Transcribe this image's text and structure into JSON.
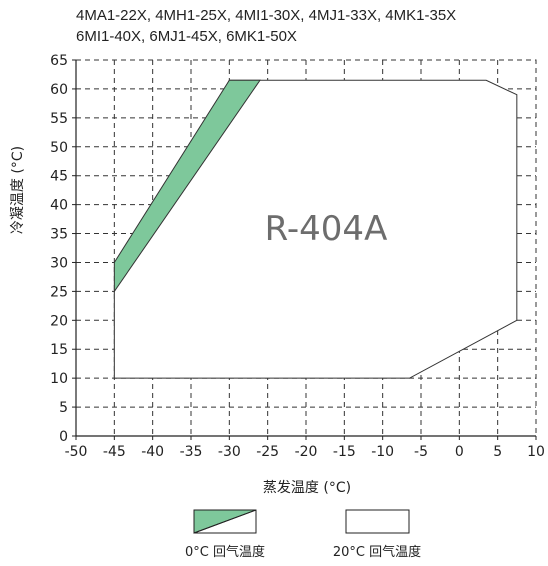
{
  "chart_data": {
    "type": "area",
    "title_lines": [
      "4MA1-22X, 4MH1-25X, 4MI1-30X, 4MJ1-33X, 4MK1-35X",
      "6MI1-40X, 6MJ1-45X, 6MK1-50X"
    ],
    "xlabel": "蒸发温度 (°C)",
    "ylabel": "冷凝温度 (°C)",
    "xlim": [
      -50,
      10
    ],
    "ylim": [
      0,
      65
    ],
    "x_ticks": [
      -50,
      -45,
      -40,
      -35,
      -30,
      -25,
      -20,
      -15,
      -10,
      -5,
      0,
      5,
      10
    ],
    "y_ticks": [
      0,
      5,
      10,
      15,
      20,
      25,
      30,
      35,
      40,
      45,
      50,
      55,
      60,
      65
    ],
    "grid": true,
    "annotation": "R-404A",
    "series": [
      {
        "name": "20°C 回气温度",
        "fill": "#ffffff",
        "points": [
          [
            -45,
            10
          ],
          [
            -45,
            25
          ],
          [
            -30,
            61.5
          ],
          [
            3.5,
            61.5
          ],
          [
            7.5,
            59
          ],
          [
            7.5,
            20
          ],
          [
            -6.5,
            10
          ]
        ]
      },
      {
        "name": "0°C 回气温度",
        "fill": "#7ec89b",
        "points": [
          [
            -45,
            25
          ],
          [
            -45,
            30
          ],
          [
            -30,
            61.5
          ],
          [
            -26,
            61.5
          ]
        ]
      }
    ],
    "legend_position": "bottom"
  }
}
